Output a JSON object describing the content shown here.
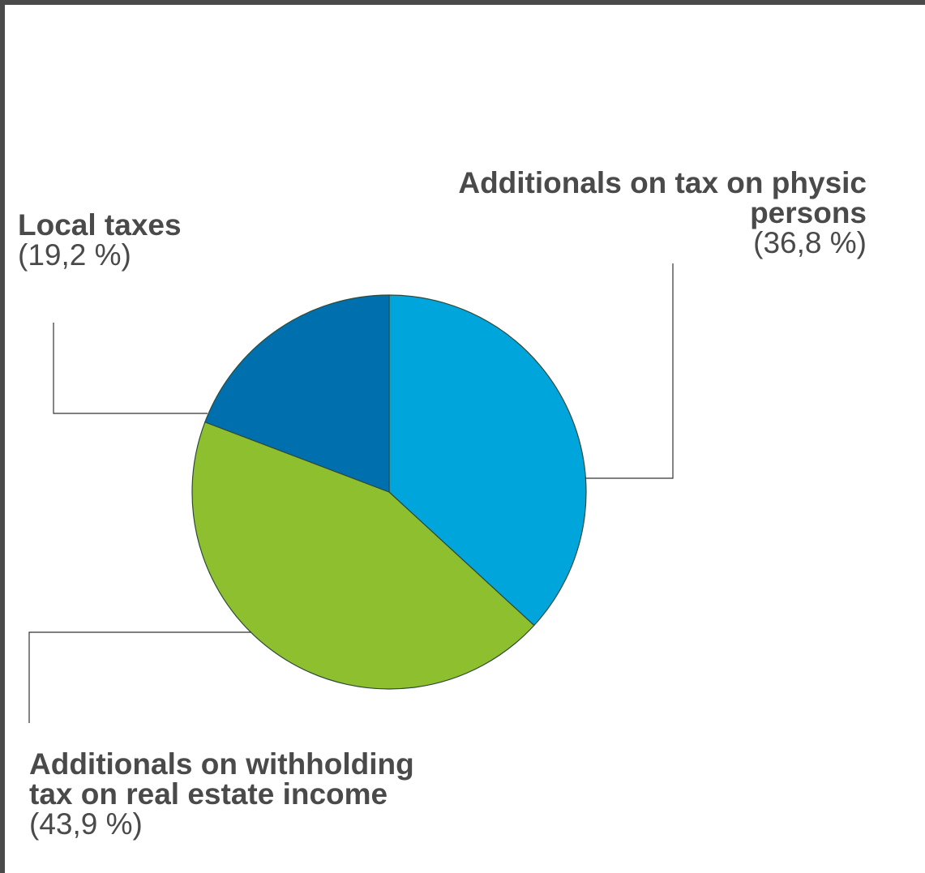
{
  "chart_data": {
    "type": "pie",
    "title": "",
    "slices": [
      {
        "label": "Additionals on tax on physic persons",
        "pct_label": "(36,8 %)",
        "value": 36.8,
        "color": "#00a6db"
      },
      {
        "label": "Additionals on withholding tax on real estate income",
        "pct_label": "(43,9 %)",
        "value": 43.9,
        "color": "#8dbf2f"
      },
      {
        "label": "Local taxes",
        "pct_label": "(19,2 %)",
        "value": 19.2,
        "color": "#006fae"
      }
    ]
  },
  "labels": {
    "physic": {
      "name_line1": "Additionals on tax on physic",
      "name_line2": "persons",
      "pct": "(36,8 %)"
    },
    "withholding": {
      "name_line1": "Additionals on withholding",
      "name_line2": "tax on real estate income",
      "pct": "(43,9 %)"
    },
    "local": {
      "name": "Local taxes",
      "pct": "(19,2 %)"
    }
  }
}
